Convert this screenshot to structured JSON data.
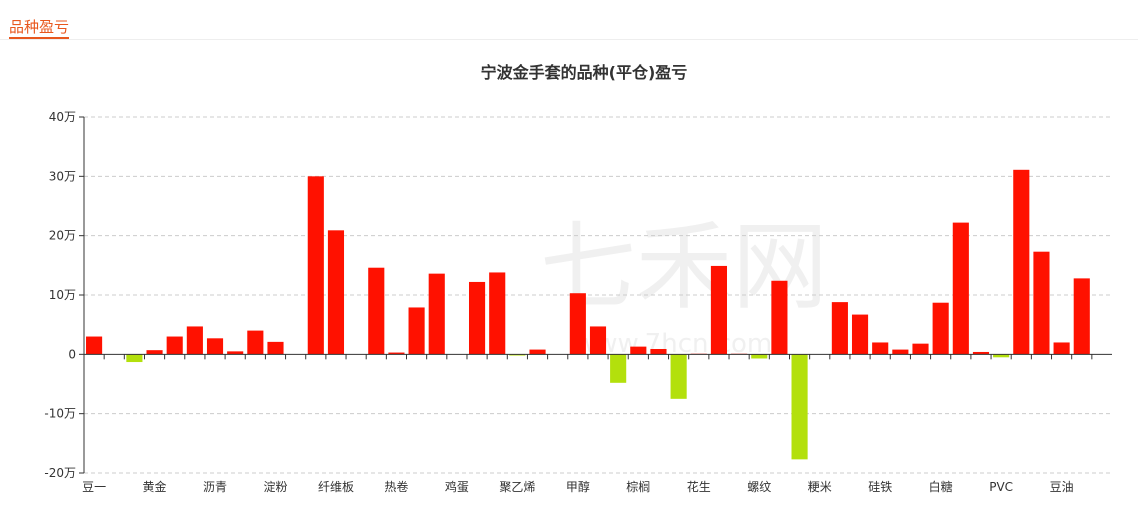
{
  "tab": {
    "title": "品种盈亏"
  },
  "watermark": {
    "brand": "七禾网",
    "url": "www.7hcn.com"
  },
  "colors": {
    "positive": "#ff1100",
    "negative": "#b3e00c"
  },
  "chart_data": {
    "type": "bar",
    "title": "宁波金手套的品种(平仓)盈亏",
    "xlabel": "",
    "ylabel": "",
    "ylim": [
      -200000,
      400000
    ],
    "yticks": [
      {
        "value": 400000,
        "label": "40万"
      },
      {
        "value": 300000,
        "label": "30万"
      },
      {
        "value": 200000,
        "label": "20万"
      },
      {
        "value": 100000,
        "label": "10万"
      },
      {
        "value": 0,
        "label": "0"
      },
      {
        "value": -100000,
        "label": "-10万"
      },
      {
        "value": -200000,
        "label": "-20万"
      }
    ],
    "grid": true,
    "legend": "none",
    "categories": [
      "豆一",
      "",
      "",
      "黄金",
      "",
      "",
      "沥青",
      "",
      "",
      "淀粉",
      "",
      "",
      "纤维板",
      "",
      "",
      "热卷",
      "",
      "",
      "鸡蛋",
      "",
      "",
      "聚乙烯",
      "",
      "",
      "甲醇",
      "",
      "",
      "棕榈",
      "",
      "",
      "花生",
      "",
      "",
      "螺纹",
      "",
      "",
      "粳米",
      "",
      "",
      "硅铁",
      "",
      "",
      "白糖",
      "",
      "",
      "PVC",
      "",
      "",
      "豆油",
      ""
    ],
    "values": [
      30000,
      0,
      -13000,
      7000,
      30000,
      47000,
      27000,
      5000,
      40000,
      21000,
      0,
      300000,
      209000,
      0,
      146000,
      3000,
      79000,
      136000,
      0,
      122000,
      138000,
      -2000,
      8000,
      0,
      103000,
      47000,
      -48000,
      13000,
      9000,
      -75000,
      1000,
      149000,
      1000,
      -7000,
      124000,
      -177000,
      0,
      88000,
      67000,
      20000,
      8000,
      18000,
      87000,
      222000,
      4000,
      -5000,
      311000,
      173000,
      20000,
      128000
    ]
  }
}
